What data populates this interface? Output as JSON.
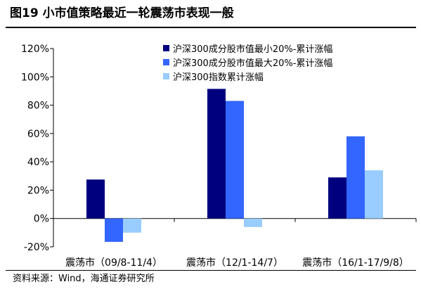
{
  "figure_title": "图19 小市值策略最近一轮震荡市表现一般",
  "source": "资料来源：Wind，海通证券研究所",
  "chart_data": {
    "type": "bar",
    "categories": [
      "震荡市（09/8-11/4）",
      "震荡市（12/1-14/7）",
      "震荡市（16/1-17/9/8）"
    ],
    "series": [
      {
        "name": "沪深300成分股市值最小20%-累计涨幅",
        "color": "#00007f",
        "values": [
          27.5,
          91.5,
          29
        ]
      },
      {
        "name": "沪深300成分股市值最大20%-累计涨幅",
        "color": "#3366ff",
        "values": [
          -16.5,
          83,
          58
        ]
      },
      {
        "name": "沪深300指数累计涨幅",
        "color": "#99ccff",
        "values": [
          -10,
          -6,
          34
        ]
      }
    ],
    "y_tick_labels": [
      "-20%",
      "0%",
      "20%",
      "40%",
      "60%",
      "80%",
      "100%",
      "120%"
    ],
    "ylim": [
      -20,
      120
    ],
    "y_step": 20,
    "grid": false,
    "legend_position": "top-right"
  }
}
